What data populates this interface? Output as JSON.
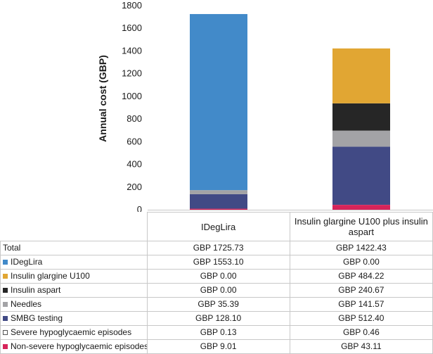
{
  "chart_data": {
    "type": "bar",
    "stacked": true,
    "ylabel": "Annual cost (GBP)",
    "ylim": [
      0,
      1800
    ],
    "yticks": [
      0,
      200,
      400,
      600,
      800,
      1000,
      1200,
      1400,
      1600,
      1800
    ],
    "categories": [
      "IDegLira",
      "Insulin glargine U100 plus insulin aspart"
    ],
    "series": [
      {
        "name": "Non-severe hypoglycaemic episodes",
        "color": "#d6245a",
        "values": [
          9.01,
          43.11
        ]
      },
      {
        "name": "Severe hypoglycaemic episodes",
        "color": "#ffffff",
        "values": [
          0.13,
          0.46
        ]
      },
      {
        "name": "SMBG testing",
        "color": "#414a85",
        "values": [
          128.1,
          512.4
        ]
      },
      {
        "name": "Needles",
        "color": "#a3a3a6",
        "values": [
          35.39,
          141.57
        ]
      },
      {
        "name": "Insulin aspart",
        "color": "#262626",
        "values": [
          0.0,
          240.67
        ]
      },
      {
        "name": "Insulin glargine U100",
        "color": "#e1a633",
        "values": [
          0.0,
          484.22
        ]
      },
      {
        "name": "IDegLira",
        "color": "#428ac9",
        "values": [
          1553.1,
          0.0
        ]
      }
    ]
  },
  "table": {
    "columns": [
      "IDegLira",
      "Insulin glargine U100 plus insulin aspart"
    ],
    "rows": [
      {
        "label": "Total",
        "values": [
          "GBP 1725.73",
          "GBP 1422.43"
        ]
      },
      {
        "label": "IDegLira",
        "color": "#428ac9",
        "values": [
          "GBP 1553.10",
          "GBP 0.00"
        ]
      },
      {
        "label": "Insulin glargine U100",
        "color": "#e1a633",
        "values": [
          "GBP 0.00",
          "GBP 484.22"
        ]
      },
      {
        "label": "Insulin aspart",
        "color": "#262626",
        "values": [
          "GBP 0.00",
          "GBP 240.67"
        ]
      },
      {
        "label": "Needles",
        "color": "#a3a3a6",
        "values": [
          "GBP 35.39",
          "GBP 141.57"
        ]
      },
      {
        "label": "SMBG testing",
        "color": "#414a85",
        "values": [
          "GBP 128.10",
          "GBP 512.40"
        ]
      },
      {
        "label": "Severe hypoglycaemic episodes",
        "color": "#ffffff",
        "values": [
          "GBP 0.13",
          "GBP 0.46"
        ]
      },
      {
        "label": "Non-severe hypoglycaemic episodes",
        "color": "#d6245a",
        "values": [
          "GBP 9.01",
          "GBP 43.11"
        ]
      }
    ]
  }
}
